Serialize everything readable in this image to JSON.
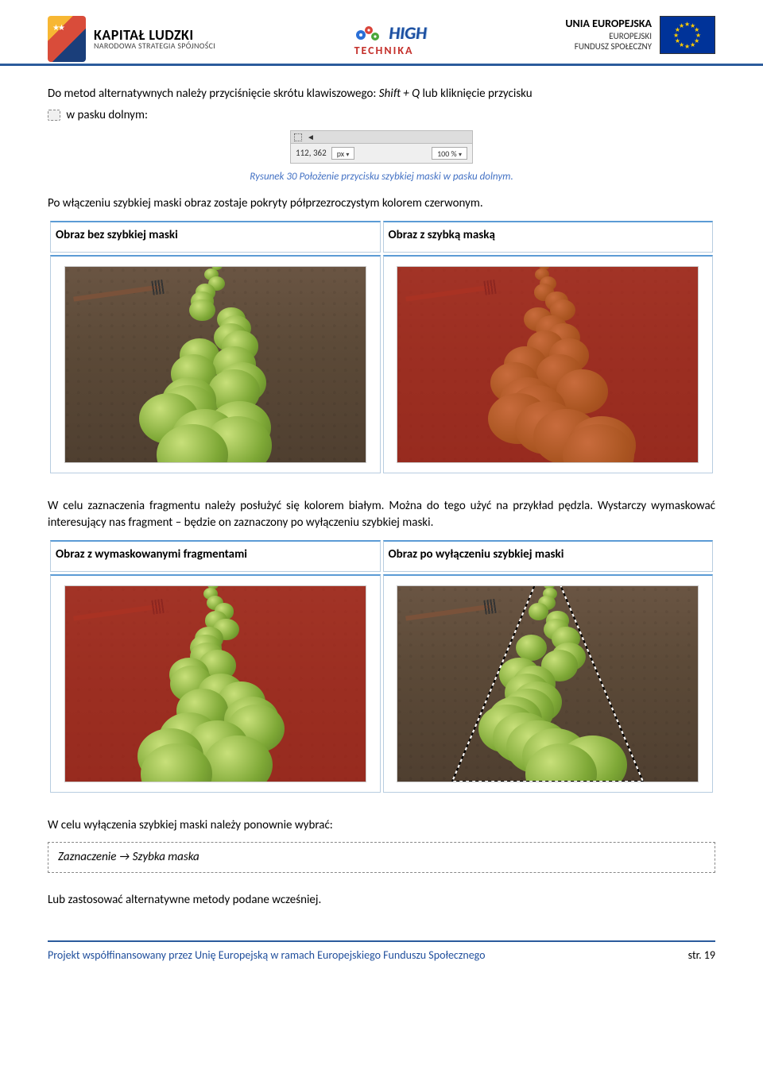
{
  "header": {
    "kapital": {
      "line1": "KAPITAŁ LUDZKI",
      "line2": "NARODOWA STRATEGIA SPÓJNOŚCI"
    },
    "hightechnika": {
      "top": "HIGH",
      "bottom_pre": "TECH",
      "bottom_accent": "NIKA"
    },
    "eu": {
      "line1": "UNIA EUROPEJSKA",
      "line2": "EUROPEJSKI",
      "line3": "FUNDUSZ SPOŁECZNY"
    }
  },
  "body": {
    "p1_a": "Do metod alternatywnych należy przyciśnięcie skrótu klawiszowego: ",
    "p1_shortcut": "Shift + Q",
    "p1_b": " lub kliknięcie przycisku ",
    "p1_c": " w pasku dolnym:",
    "statusbar": {
      "coords": "112, 362",
      "unit": "px",
      "zoom": "100 %",
      "dropdown_arrow": "▾"
    },
    "caption1": "Rysunek 30 Położenie przycisku szybkiej maski w pasku dolnym.",
    "p2": "Po włączeniu szybkiej maski obraz zostaje pokryty półprzezroczystym kolorem czerwonym.",
    "table1": {
      "h1": "Obraz bez szybkiej maski",
      "h2": "Obraz z szybką maską"
    },
    "p3": "W celu zaznaczenia fragmentu należy posłużyć się kolorem białym. Można do tego użyć na przykład pędzla. Wystarczy wymaskować interesujący nas fragment – będzie on zaznaczony po wyłączeniu szybkiej maski.",
    "table2": {
      "h1": "Obraz z wymaskowanymi fragmentami",
      "h2": "Obraz po wyłączeniu szybkiej maski"
    },
    "p4": "W celu wyłączenia szybkiej maski należy ponownie wybrać:",
    "menu_path": "Zaznaczenie → Szybka maska",
    "p5": "Lub zastosować alternatywne metody podane wcześniej."
  },
  "footer": {
    "project": "Projekt współfinansowany przez Unię Europejską w ramach Europejskiego Funduszu Społecznego",
    "page": "str. 19"
  },
  "colors": {
    "header_rule": "#2b5b9c",
    "caption": "#4472c4",
    "table_border_top": "#5b9bd5",
    "table_border": "#b8cde0",
    "footer_text": "#1f4e9c",
    "red_overlay": "rgba(200,30,20,0.6)",
    "eu_flag_bg": "#003399",
    "eu_star": "#ffcc00"
  }
}
